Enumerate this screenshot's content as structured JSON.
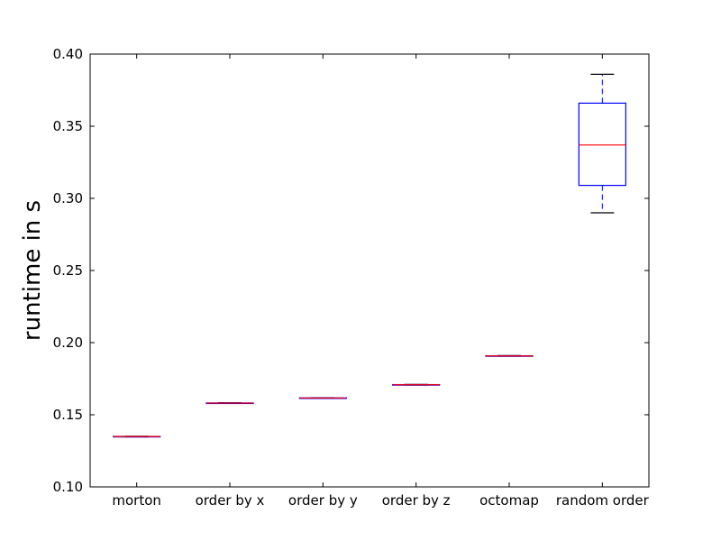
{
  "chart_data": {
    "type": "box",
    "title": "",
    "xlabel": "",
    "ylabel": "runtime in s",
    "ylim": [
      0.1,
      0.4
    ],
    "yticks": [
      "0.10",
      "0.15",
      "0.20",
      "0.25",
      "0.30",
      "0.35",
      "0.40"
    ],
    "categories": [
      "morton",
      "order by x",
      "order by y",
      "order by z",
      "octomap",
      "random order"
    ],
    "boxes": [
      {
        "label": "morton",
        "whislo": 0.1347,
        "q1": 0.1348,
        "med": 0.1349,
        "q3": 0.135,
        "whishi": 0.1351
      },
      {
        "label": "order by x",
        "whislo": 0.1579,
        "q1": 0.158,
        "med": 0.1581,
        "q3": 0.1582,
        "whishi": 0.1583
      },
      {
        "label": "order by y",
        "whislo": 0.1614,
        "q1": 0.1615,
        "med": 0.1616,
        "q3": 0.1617,
        "whishi": 0.1618
      },
      {
        "label": "order by z",
        "whislo": 0.1706,
        "q1": 0.1707,
        "med": 0.1708,
        "q3": 0.1709,
        "whishi": 0.171
      },
      {
        "label": "octomap",
        "whislo": 0.1906,
        "q1": 0.1907,
        "med": 0.1908,
        "q3": 0.1909,
        "whishi": 0.191
      },
      {
        "label": "random order",
        "whislo": 0.29,
        "q1": 0.309,
        "med": 0.337,
        "q3": 0.366,
        "whishi": 0.386
      }
    ],
    "grid": false,
    "colors": {
      "box": "#0000ff",
      "median": "#ff0000",
      "whisker": "#0000ff",
      "cap": "#000000"
    }
  }
}
